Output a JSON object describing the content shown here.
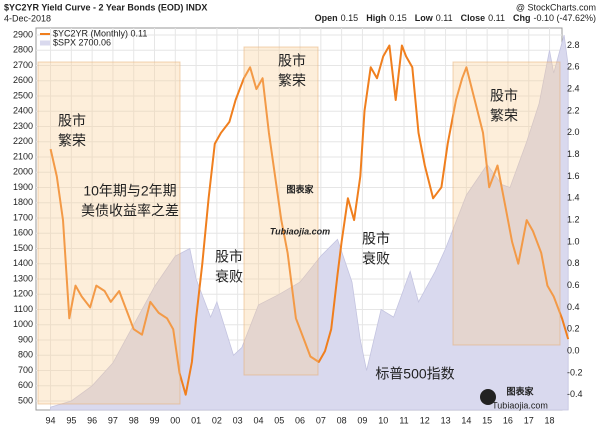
{
  "header": {
    "title": "$YC2YR Yield Curve - 2 Year Bonds (EOD) INDX",
    "date": "4-Dec-2018",
    "source": "@ StockCharts.com",
    "stats": [
      {
        "label": "Open",
        "value": "0.15"
      },
      {
        "label": "High",
        "value": "0.15"
      },
      {
        "label": "Low",
        "value": "0.11"
      },
      {
        "label": "Close",
        "value": "0.11"
      },
      {
        "label": "Chg",
        "value": "-0.10 (-47.62%)"
      }
    ]
  },
  "chart_data": {
    "type": "line",
    "xlim": [
      1993.3,
      2018.6
    ],
    "xticks": [
      {
        "value": 1994,
        "label": "94"
      },
      {
        "value": 1995,
        "label": "95"
      },
      {
        "value": 1996,
        "label": "96"
      },
      {
        "value": 1997,
        "label": "97"
      },
      {
        "value": 1998,
        "label": "98"
      },
      {
        "value": 1999,
        "label": "99"
      },
      {
        "value": 2000,
        "label": "00"
      },
      {
        "value": 2001,
        "label": "01"
      },
      {
        "value": 2002,
        "label": "02"
      },
      {
        "value": 2003,
        "label": "03"
      },
      {
        "value": 2004,
        "label": "04"
      },
      {
        "value": 2005,
        "label": "05"
      },
      {
        "value": 2006,
        "label": "06"
      },
      {
        "value": 2007,
        "label": "07"
      },
      {
        "value": 2008,
        "label": "08"
      },
      {
        "value": 2009,
        "label": "09"
      },
      {
        "value": 2010,
        "label": "10"
      },
      {
        "value": 2011,
        "label": "11"
      },
      {
        "value": 2012,
        "label": "12"
      },
      {
        "value": 2013,
        "label": "13"
      },
      {
        "value": 2014,
        "label": "14"
      },
      {
        "value": 2015,
        "label": "15"
      },
      {
        "value": 2016,
        "label": "16"
      },
      {
        "value": 2017,
        "label": "17"
      },
      {
        "value": 2018,
        "label": "18"
      }
    ],
    "ylim": [
      441,
      2946
    ],
    "yticks": [
      500,
      600,
      700,
      800,
      900,
      1000,
      1100,
      1200,
      1300,
      1400,
      1500,
      1600,
      1700,
      1800,
      1900,
      2000,
      2100,
      2200,
      2300,
      2400,
      2500,
      2600,
      2700,
      2800,
      2900
    ],
    "y2lim": [
      -0.54,
      2.96
    ],
    "y2ticks": [
      -0.4,
      -0.2,
      {
        "value": 0,
        "label": "0.0"
      },
      0.2,
      0.4,
      0.6,
      0.8,
      {
        "value": 1,
        "label": "1.0"
      },
      1.2,
      1.4,
      1.6,
      1.8,
      {
        "value": 2,
        "label": "2.0"
      },
      2.2,
      2.4,
      2.6,
      2.8
    ],
    "grid": true,
    "series": [
      {
        "name": "$SPX 2700.06",
        "kind": "area",
        "color": "#d9d9ee",
        "axis": "y",
        "x": [
          1994.0,
          1995.0,
          1996.0,
          1997.0,
          1998.0,
          1999.0,
          2000.0,
          2000.7,
          2001.0,
          2001.7,
          2002.0,
          2002.8,
          2003.2,
          2004.0,
          2005.0,
          2006.0,
          2007.0,
          2007.8,
          2008.5,
          2008.9,
          2009.2,
          2009.9,
          2010.5,
          2011.3,
          2011.7,
          2012.5,
          2013.0,
          2014.0,
          2015.0,
          2015.7,
          2016.1,
          2016.9,
          2017.5,
          2018.0,
          2018.2,
          2018.7,
          2018.9
        ],
        "values": [
          460,
          500,
          600,
          750,
          1000,
          1250,
          1450,
          1500,
          1300,
          1050,
          1150,
          800,
          850,
          1130,
          1200,
          1280,
          1450,
          1560,
          1280,
          900,
          700,
          1100,
          1050,
          1350,
          1150,
          1350,
          1500,
          1850,
          2050,
          1920,
          1900,
          2200,
          2450,
          2800,
          2650,
          2900,
          2700
        ]
      },
      {
        "name": "$YC2YR (Monthly) 0.11",
        "kind": "line",
        "color": "#f07f1e",
        "axis": "y2",
        "x": [
          1994.0,
          1994.3,
          1994.6,
          1994.9,
          1995.2,
          1995.5,
          1995.9,
          1996.2,
          1996.6,
          1996.9,
          1997.3,
          1997.7,
          1998.0,
          1998.4,
          1998.8,
          1999.2,
          1999.6,
          1999.9,
          2000.2,
          2000.5,
          2000.8,
          2001.0,
          2001.3,
          2001.6,
          2001.9,
          2002.2,
          2002.6,
          2002.9,
          2003.3,
          2003.6,
          2003.9,
          2004.2,
          2004.5,
          2004.8,
          2005.1,
          2005.4,
          2005.8,
          2006.2,
          2006.5,
          2006.9,
          2007.2,
          2007.5,
          2007.8,
          2008.0,
          2008.3,
          2008.6,
          2008.9,
          2009.1,
          2009.4,
          2009.7,
          2010.0,
          2010.3,
          2010.6,
          2010.9,
          2011.1,
          2011.4,
          2011.7,
          2012.0,
          2012.4,
          2012.8,
          2013.1,
          2013.5,
          2013.8,
          2014.0,
          2014.4,
          2014.8,
          2015.1,
          2015.5,
          2015.9,
          2016.2,
          2016.5,
          2016.9,
          2017.2,
          2017.6,
          2017.9,
          2018.2,
          2018.6,
          2018.9
        ],
        "values": [
          1.85,
          1.6,
          1.2,
          0.3,
          0.6,
          0.5,
          0.4,
          0.6,
          0.55,
          0.45,
          0.55,
          0.35,
          0.2,
          0.15,
          0.45,
          0.35,
          0.3,
          0.2,
          -0.2,
          -0.4,
          -0.1,
          0.3,
          0.8,
          1.4,
          1.9,
          2.0,
          2.1,
          2.3,
          2.5,
          2.6,
          2.4,
          2.5,
          2.0,
          1.6,
          1.2,
          0.9,
          0.3,
          0.1,
          -0.05,
          -0.1,
          0.0,
          0.2,
          0.7,
          1.0,
          1.4,
          1.2,
          1.6,
          2.2,
          2.6,
          2.5,
          2.7,
          2.8,
          2.3,
          2.8,
          2.7,
          2.6,
          2.0,
          1.7,
          1.4,
          1.5,
          1.9,
          2.3,
          2.5,
          2.6,
          2.3,
          2.0,
          1.5,
          1.7,
          1.3,
          1.0,
          0.8,
          1.2,
          1.1,
          0.9,
          0.6,
          0.5,
          0.3,
          0.11
        ]
      }
    ],
    "annotations": [
      {
        "text": [
          "股市",
          "繁荣"
        ],
        "style": "boom"
      },
      {
        "text": [
          "10年期与2年期",
          "美债收益率之差"
        ],
        "style": "spread"
      },
      {
        "text": [
          "股市",
          "衰败"
        ],
        "style": "bust"
      },
      {
        "text": [
          "股市",
          "繁荣"
        ],
        "style": "boom"
      },
      {
        "text": [
          "股市",
          "衰败"
        ],
        "style": "bust"
      },
      {
        "text": [
          "股市",
          "繁荣"
        ],
        "style": "boom"
      },
      {
        "text": [
          "标普500指数"
        ],
        "style": "index"
      }
    ]
  },
  "watermark": {
    "title": "图表家",
    "url": "Tubiaojia.com"
  },
  "logo": {
    "title": "图表家",
    "url": "Tubiaojia.com"
  }
}
